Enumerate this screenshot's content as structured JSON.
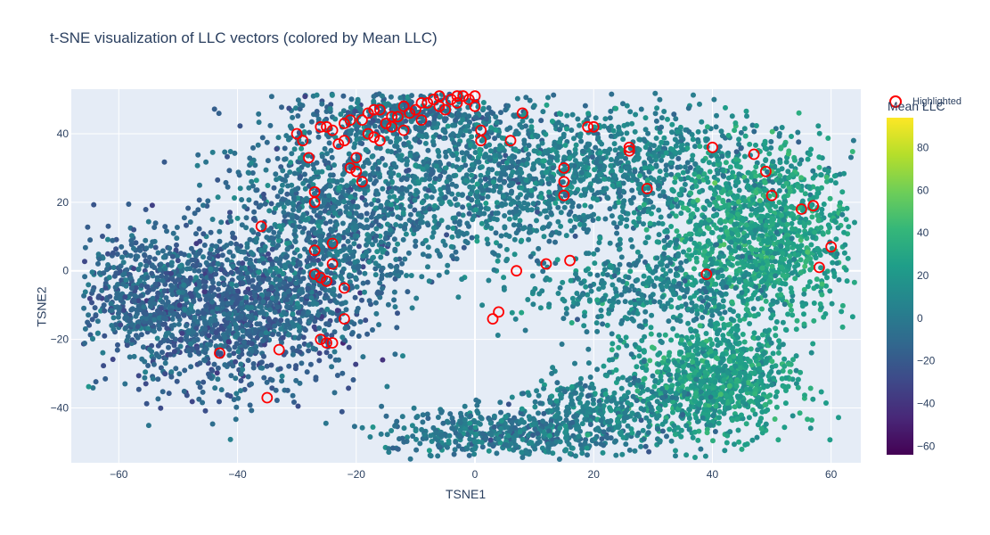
{
  "chart_data": {
    "type": "scatter",
    "title": "t-SNE visualization of LLC vectors (colored by Mean LLC)",
    "xlabel": "TSNE1",
    "ylabel": "TSNE2",
    "xlim": [
      -68,
      65
    ],
    "ylim": [
      -56,
      53
    ],
    "x_ticks": [
      -60,
      -40,
      -20,
      0,
      20,
      40,
      60
    ],
    "y_ticks": [
      -40,
      -20,
      0,
      20,
      40
    ],
    "grid": true,
    "plot_bgcolor": "#e5ecf6",
    "colorscale": "viridis",
    "colorbar": {
      "title": "Mean LLC",
      "range": [
        -64,
        94
      ],
      "ticks": [
        -60,
        -40,
        -20,
        0,
        20,
        40,
        60,
        80
      ]
    },
    "legend": {
      "entries": [
        "Highlighted"
      ],
      "placement": "top-right",
      "marker_color": "#ff0000"
    },
    "clusters": [
      {
        "cx": -42,
        "cy": -12,
        "sx": 11,
        "sy": 11,
        "n": 1500,
        "c": -14
      },
      {
        "cx": -25,
        "cy": 15,
        "sx": 9,
        "sy": 14,
        "n": 900,
        "c": -6
      },
      {
        "cx": -10,
        "cy": 45,
        "sx": 9,
        "sy": 4,
        "n": 350,
        "c": -4
      },
      {
        "cx": 0,
        "cy": 25,
        "sx": 14,
        "sy": 11,
        "n": 900,
        "c": 0
      },
      {
        "cx": 25,
        "cy": 30,
        "sx": 14,
        "sy": 9,
        "n": 800,
        "c": 6
      },
      {
        "cx": 48,
        "cy": 10,
        "sx": 8,
        "sy": 13,
        "n": 1200,
        "c": 26
      },
      {
        "cx": 40,
        "cy": -32,
        "sx": 7,
        "sy": 8,
        "n": 900,
        "c": 24
      },
      {
        "cx": 5,
        "cy": -48,
        "sx": 10,
        "sy": 4,
        "n": 500,
        "c": 0
      },
      {
        "cx": 22,
        "cy": -40,
        "sx": 8,
        "sy": 5,
        "n": 300,
        "c": 6
      },
      {
        "cx": 28,
        "cy": -5,
        "sx": 10,
        "sy": 7,
        "n": 400,
        "c": 6
      },
      {
        "cx": -58,
        "cy": -5,
        "sx": 5,
        "sy": 8,
        "n": 250,
        "c": -10
      }
    ],
    "highlighted_points": [
      [
        -30,
        40
      ],
      [
        -29,
        38
      ],
      [
        -28,
        33
      ],
      [
        -27,
        23
      ],
      [
        -27,
        20
      ],
      [
        -26,
        42
      ],
      [
        -25,
        42
      ],
      [
        -24,
        41
      ],
      [
        -23,
        37
      ],
      [
        -22,
        38
      ],
      [
        -21,
        30
      ],
      [
        -20,
        29
      ],
      [
        -19,
        26
      ],
      [
        -20,
        33
      ],
      [
        -18,
        40
      ],
      [
        -17,
        39
      ],
      [
        -16,
        38
      ],
      [
        -15,
        43
      ],
      [
        -14,
        42
      ],
      [
        -12,
        41
      ],
      [
        -11,
        46
      ],
      [
        -10,
        47
      ],
      [
        -9,
        44
      ],
      [
        -8,
        49
      ],
      [
        -7,
        50
      ],
      [
        -6,
        48
      ],
      [
        -5,
        47
      ],
      [
        -4,
        50
      ],
      [
        -3,
        49
      ],
      [
        -2,
        51
      ],
      [
        -1,
        50
      ],
      [
        0,
        48
      ],
      [
        1,
        41
      ],
      [
        1,
        38
      ],
      [
        6,
        38
      ],
      [
        8,
        46
      ],
      [
        15,
        30
      ],
      [
        15,
        26
      ],
      [
        15,
        22
      ],
      [
        19,
        42
      ],
      [
        20,
        42
      ],
      [
        26,
        36
      ],
      [
        26,
        35
      ],
      [
        29,
        24
      ],
      [
        40,
        36
      ],
      [
        47,
        34
      ],
      [
        49,
        29
      ],
      [
        50,
        22
      ],
      [
        55,
        18
      ],
      [
        57,
        19
      ],
      [
        60,
        7
      ],
      [
        58,
        1
      ],
      [
        -36,
        13
      ],
      [
        -27,
        6
      ],
      [
        -24,
        8
      ],
      [
        -24,
        2
      ],
      [
        -27,
        -1
      ],
      [
        -26,
        -2
      ],
      [
        -25,
        -3
      ],
      [
        -22,
        -5
      ],
      [
        -22,
        -14
      ],
      [
        -26,
        -20
      ],
      [
        -25,
        -21
      ],
      [
        -24,
        -21
      ],
      [
        -33,
        -23
      ],
      [
        -43,
        -24
      ],
      [
        -35,
        -37
      ],
      [
        4,
        -12
      ],
      [
        3,
        -14
      ],
      [
        7,
        0
      ],
      [
        12,
        2
      ],
      [
        16,
        3
      ],
      [
        39,
        -1
      ],
      [
        -21,
        44
      ],
      [
        -19,
        44
      ],
      [
        -18,
        46
      ],
      [
        -17,
        47
      ],
      [
        -16,
        47
      ],
      [
        -13,
        45
      ],
      [
        -9,
        49
      ],
      [
        -6,
        51
      ],
      [
        -3,
        51
      ],
      [
        0,
        51
      ],
      [
        -22,
        43
      ],
      [
        -12,
        48
      ],
      [
        -14,
        45
      ]
    ]
  }
}
